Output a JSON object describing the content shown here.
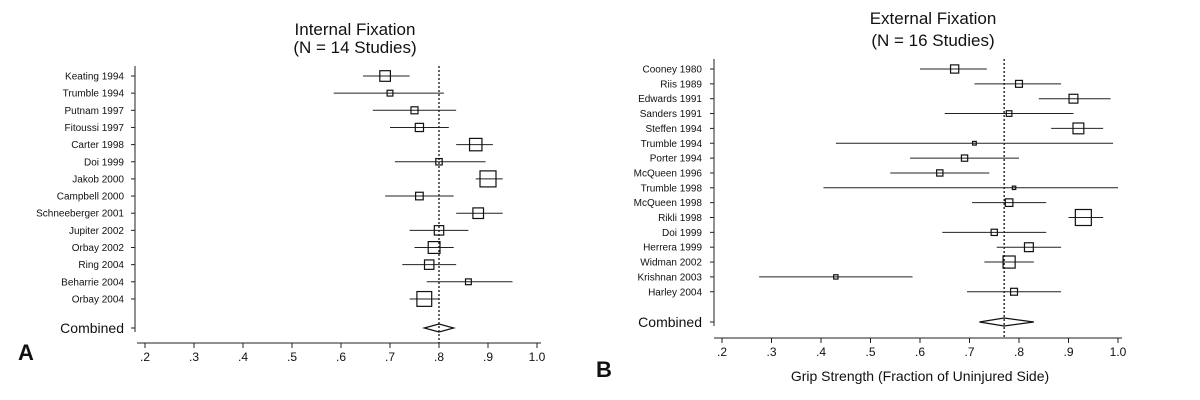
{
  "chart_data": [
    {
      "type": "forest",
      "panel": "A",
      "title": "Internal Fixation",
      "subtitle": "(N = 14 Studies)",
      "xlabel": "",
      "xlim": [
        0.2,
        1.0
      ],
      "xticks": [
        ".2",
        ".3",
        ".4",
        ".5",
        ".6",
        ".7",
        ".8",
        ".9",
        "1.0"
      ],
      "reference_line": 0.8,
      "combined_label": "Combined",
      "combined": {
        "estimate": 0.8,
        "lower": 0.77,
        "upper": 0.83
      },
      "studies": [
        {
          "label": "Keating 1994",
          "estimate": 0.69,
          "lower": 0.645,
          "upper": 0.74,
          "weight": 0.55
        },
        {
          "label": "Trumble 1994",
          "estimate": 0.7,
          "lower": 0.585,
          "upper": 0.81,
          "weight": 0.15
        },
        {
          "label": "Putnam 1997",
          "estimate": 0.75,
          "lower": 0.665,
          "upper": 0.835,
          "weight": 0.25
        },
        {
          "label": "Fitoussi 1997",
          "estimate": 0.76,
          "lower": 0.7,
          "upper": 0.82,
          "weight": 0.35
        },
        {
          "label": "Carter 1998",
          "estimate": 0.875,
          "lower": 0.835,
          "upper": 0.91,
          "weight": 0.7
        },
        {
          "label": "Doi 1999",
          "estimate": 0.8,
          "lower": 0.71,
          "upper": 0.895,
          "weight": 0.2
        },
        {
          "label": "Jakob 2000",
          "estimate": 0.9,
          "lower": 0.875,
          "upper": 0.93,
          "weight": 1.0
        },
        {
          "label": "Campbell 2000",
          "estimate": 0.76,
          "lower": 0.69,
          "upper": 0.83,
          "weight": 0.3
        },
        {
          "label": "Schneeberger 2001",
          "estimate": 0.88,
          "lower": 0.835,
          "upper": 0.93,
          "weight": 0.55
        },
        {
          "label": "Jupiter 2002",
          "estimate": 0.8,
          "lower": 0.74,
          "upper": 0.86,
          "weight": 0.45
        },
        {
          "label": "Orbay 2002",
          "estimate": 0.79,
          "lower": 0.75,
          "upper": 0.83,
          "weight": 0.65
        },
        {
          "label": "Ring 2004",
          "estimate": 0.78,
          "lower": 0.725,
          "upper": 0.835,
          "weight": 0.45
        },
        {
          "label": "Beharrie 2004",
          "estimate": 0.86,
          "lower": 0.775,
          "upper": 0.95,
          "weight": 0.15
        },
        {
          "label": "Orbay 2004",
          "estimate": 0.77,
          "lower": 0.74,
          "upper": 0.8,
          "weight": 0.9
        }
      ]
    },
    {
      "type": "forest",
      "panel": "B",
      "title": "External Fixation",
      "subtitle": "(N = 16 Studies)",
      "xlabel": "Grip Strength (Fraction of Uninjured Side)",
      "xlim": [
        0.2,
        1.0
      ],
      "xticks": [
        ".2",
        ".3",
        ".4",
        ".5",
        ".6",
        ".7",
        ".8",
        ".9",
        "1.0"
      ],
      "reference_line": 0.77,
      "combined_label": "Combined",
      "combined": {
        "estimate": 0.77,
        "lower": 0.72,
        "upper": 0.83
      },
      "studies": [
        {
          "label": "Cooney 1980",
          "estimate": 0.67,
          "lower": 0.6,
          "upper": 0.735,
          "weight": 0.4
        },
        {
          "label": "Riis 1989",
          "estimate": 0.8,
          "lower": 0.71,
          "upper": 0.885,
          "weight": 0.3
        },
        {
          "label": "Edwards 1991",
          "estimate": 0.91,
          "lower": 0.84,
          "upper": 0.985,
          "weight": 0.45
        },
        {
          "label": "Sanders 1991",
          "estimate": 0.78,
          "lower": 0.65,
          "upper": 0.91,
          "weight": 0.2
        },
        {
          "label": "Steffen 1994",
          "estimate": 0.92,
          "lower": 0.865,
          "upper": 0.97,
          "weight": 0.6
        },
        {
          "label": "Trumble 1994",
          "estimate": 0.71,
          "lower": 0.43,
          "upper": 0.99,
          "weight": 0.05
        },
        {
          "label": "Porter 1994",
          "estimate": 0.69,
          "lower": 0.58,
          "upper": 0.8,
          "weight": 0.25
        },
        {
          "label": "McQueen 1996",
          "estimate": 0.64,
          "lower": 0.54,
          "upper": 0.74,
          "weight": 0.25
        },
        {
          "label": "Trumble 1998",
          "estimate": 0.79,
          "lower": 0.405,
          "upper": 1.0,
          "weight": 0.03
        },
        {
          "label": "McQueen 1998",
          "estimate": 0.78,
          "lower": 0.705,
          "upper": 0.855,
          "weight": 0.35
        },
        {
          "label": "Rikli 1998",
          "estimate": 0.93,
          "lower": 0.9,
          "upper": 0.97,
          "weight": 1.0
        },
        {
          "label": "Doi 1999",
          "estimate": 0.75,
          "lower": 0.645,
          "upper": 0.855,
          "weight": 0.25
        },
        {
          "label": "Herrera 1999",
          "estimate": 0.82,
          "lower": 0.755,
          "upper": 0.885,
          "weight": 0.45
        },
        {
          "label": "Widman 2002",
          "estimate": 0.78,
          "lower": 0.73,
          "upper": 0.83,
          "weight": 0.7
        },
        {
          "label": "Krishnan 2003",
          "estimate": 0.43,
          "lower": 0.275,
          "upper": 0.585,
          "weight": 0.1
        },
        {
          "label": "Harley 2004",
          "estimate": 0.79,
          "lower": 0.695,
          "upper": 0.885,
          "weight": 0.3
        }
      ]
    }
  ]
}
